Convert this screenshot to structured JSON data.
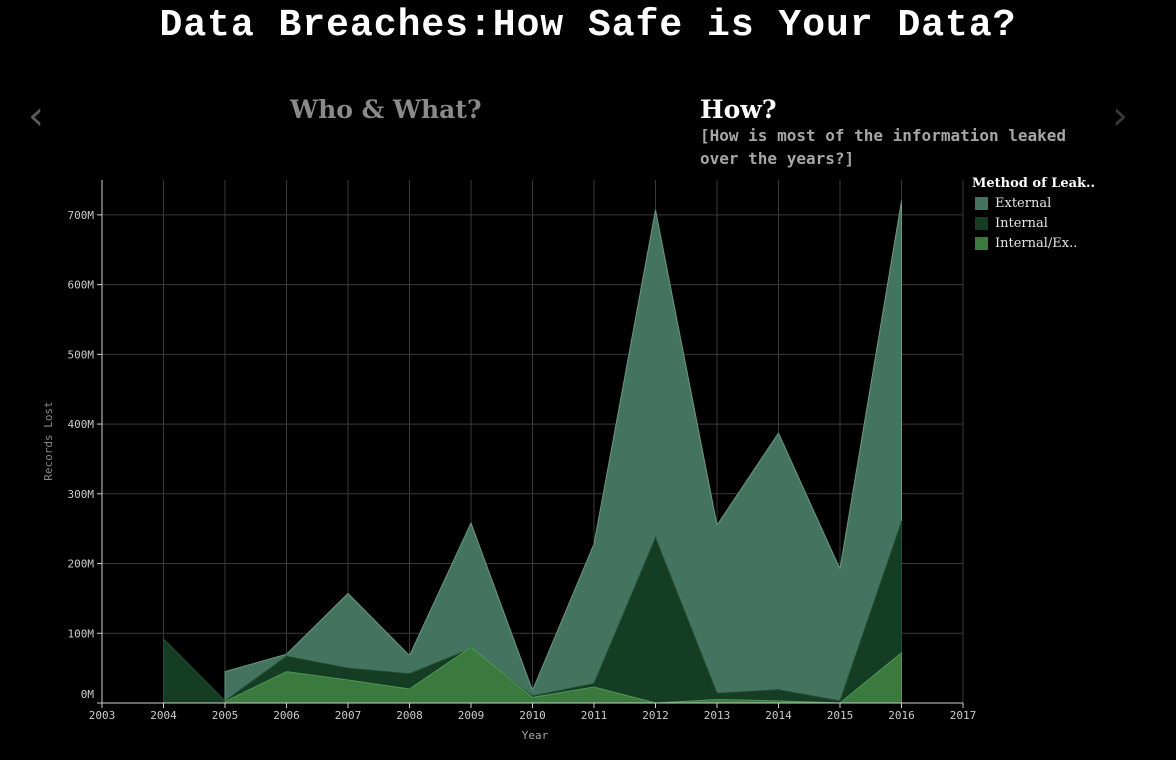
{
  "page": {
    "title": "Data Breaches:How Safe is Your Data?",
    "nav": {
      "prev_icon": "‹",
      "next_icon": "›"
    },
    "tabs": [
      {
        "label": "Who & What?"
      },
      {
        "label": "How?"
      }
    ],
    "subtitle": "[How is most of the information leaked over the years?]"
  },
  "chart_data": {
    "type": "area",
    "xlabel": "Year",
    "ylabel": "Records Lost",
    "xlim": [
      2003,
      2017
    ],
    "ylim": [
      0,
      750
    ],
    "x_ticks": [
      "2003",
      "2004",
      "2005",
      "2006",
      "2007",
      "2008",
      "2009",
      "2010",
      "2011",
      "2012",
      "2013",
      "2014",
      "2015",
      "2016",
      "2017"
    ],
    "y_ticks": [
      {
        "value": 0,
        "label": "0M"
      },
      {
        "value": 100,
        "label": "100M"
      },
      {
        "value": 200,
        "label": "200M"
      },
      {
        "value": 300,
        "label": "300M"
      },
      {
        "value": 400,
        "label": "400M"
      },
      {
        "value": 500,
        "label": "500M"
      },
      {
        "value": 600,
        "label": "600M"
      },
      {
        "value": 700,
        "label": "700M"
      }
    ],
    "grid": true,
    "legend": {
      "title": "Method of Leak..",
      "placement": "right"
    },
    "series": [
      {
        "name": "External",
        "color": "#447460",
        "points": [
          [
            2005,
            45
          ],
          [
            2006,
            70
          ],
          [
            2007,
            157
          ],
          [
            2008,
            68
          ],
          [
            2009,
            258
          ],
          [
            2010,
            18
          ],
          [
            2011,
            228
          ],
          [
            2012,
            707
          ],
          [
            2013,
            255
          ],
          [
            2014,
            387
          ],
          [
            2015,
            192
          ],
          [
            2016,
            720
          ]
        ]
      },
      {
        "name": "Internal",
        "color": "#153d24",
        "points": [
          [
            2004,
            92
          ],
          [
            2005,
            3
          ],
          [
            2006,
            67
          ],
          [
            2007,
            50
          ],
          [
            2008,
            42
          ],
          [
            2009,
            78
          ],
          [
            2010,
            10
          ],
          [
            2011,
            28
          ],
          [
            2012,
            237
          ],
          [
            2013,
            14
          ],
          [
            2014,
            19
          ],
          [
            2015,
            3
          ],
          [
            2016,
            260
          ]
        ]
      },
      {
        "name": "Internal/Ex..",
        "color": "#3a7a3e",
        "points": [
          [
            2005,
            2
          ],
          [
            2006,
            45
          ],
          [
            2007,
            33
          ],
          [
            2008,
            20
          ],
          [
            2009,
            80
          ],
          [
            2010,
            8
          ],
          [
            2011,
            23
          ],
          [
            2012,
            0
          ],
          [
            2013,
            5
          ],
          [
            2014,
            3
          ],
          [
            2015,
            0
          ],
          [
            2016,
            72
          ]
        ]
      }
    ]
  }
}
